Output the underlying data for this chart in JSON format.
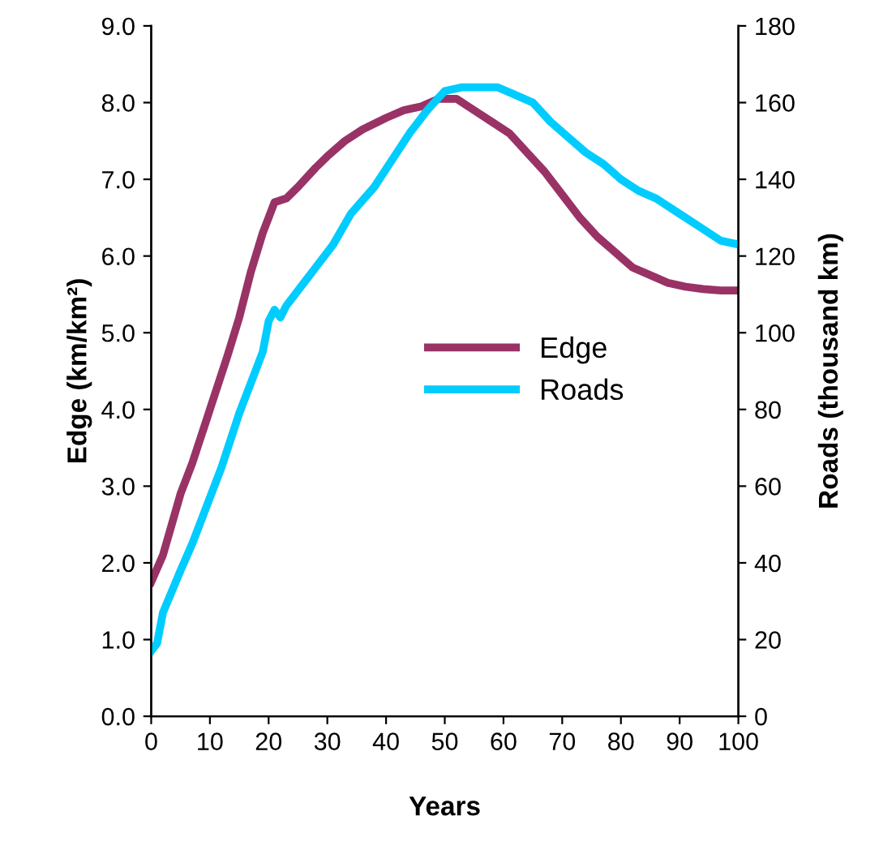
{
  "chart_data": {
    "type": "line",
    "xlabel": "Years",
    "ylabel": "Edge (km/km²)",
    "y2label": "Roads (thousand km)",
    "xlim": [
      0,
      100
    ],
    "xticks": [
      0,
      10,
      20,
      30,
      40,
      50,
      60,
      70,
      80,
      90,
      100
    ],
    "ylim": [
      0,
      9
    ],
    "yticks": [
      {
        "value": 0,
        "label": "0.0"
      },
      {
        "value": 1,
        "label": "1.0"
      },
      {
        "value": 2,
        "label": "2.0"
      },
      {
        "value": 3,
        "label": "3.0"
      },
      {
        "value": 4,
        "label": "4.0"
      },
      {
        "value": 5,
        "label": "5.0"
      },
      {
        "value": 6,
        "label": "6.0"
      },
      {
        "value": 7,
        "label": "7.0"
      },
      {
        "value": 8,
        "label": "8.0"
      },
      {
        "value": 9,
        "label": "9.0"
      }
    ],
    "y2lim": [
      0,
      180
    ],
    "y2ticks": [
      0,
      20,
      40,
      60,
      80,
      100,
      120,
      140,
      160,
      180
    ],
    "legend": "center right",
    "grid": false,
    "marker": "none",
    "line_style": "solid",
    "series": [
      {
        "name": "Edge",
        "color": "#993366",
        "x": [
          0,
          2,
          5,
          7,
          10,
          13,
          15,
          17,
          19,
          21,
          23,
          25,
          28,
          30,
          33,
          36,
          40,
          43,
          46,
          49,
          52,
          55,
          58,
          61,
          64,
          67,
          70,
          73,
          76,
          79,
          82,
          85,
          88,
          91,
          94,
          97,
          100
        ],
        "values": [
          1.75,
          2.1,
          2.9,
          3.3,
          4.0,
          4.7,
          5.2,
          5.8,
          6.3,
          6.7,
          6.75,
          6.9,
          7.15,
          7.3,
          7.5,
          7.65,
          7.8,
          7.9,
          7.95,
          8.05,
          8.05,
          7.9,
          7.75,
          7.6,
          7.35,
          7.1,
          6.8,
          6.5,
          6.25,
          6.05,
          5.85,
          5.75,
          5.65,
          5.6,
          5.57,
          5.55,
          5.55
        ]
      },
      {
        "name": "Roads",
        "color": "#00ccff",
        "axis": "y2",
        "x": [
          0,
          1,
          2,
          5,
          7,
          9,
          12,
          15,
          17,
          19,
          20,
          21,
          22,
          23,
          26,
          28,
          31,
          34,
          38,
          41,
          44,
          47,
          50,
          53,
          56,
          59,
          62,
          65,
          68,
          71,
          74,
          77,
          80,
          83,
          86,
          90,
          94,
          97,
          100
        ],
        "values": [
          17,
          19,
          27,
          38,
          45,
          53,
          65,
          79,
          87,
          95,
          103,
          106,
          104,
          107,
          113,
          117,
          123,
          131,
          138,
          145,
          152,
          158,
          163,
          164,
          164,
          164,
          162,
          160,
          155,
          151,
          147,
          144,
          140,
          137,
          135,
          131,
          127,
          124,
          123
        ]
      }
    ]
  }
}
